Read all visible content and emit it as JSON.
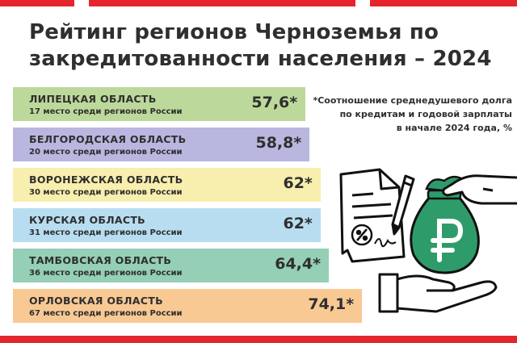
{
  "title_line1": "Рейтинг регионов Черноземья по",
  "title_line2": "закредитованности населения – 2024",
  "footnote_lines": [
    "*Соотношение среднедушевого долга",
    "по кредитам и годовой зарплаты",
    "в начале 2024 года, %"
  ],
  "colors": {
    "accent_red": "#e4262c",
    "text": "#2f2f2f",
    "money_bag": "#2e9c6a"
  },
  "icons": [
    "document-icon",
    "percent-icon",
    "pen-icon",
    "hand-icon",
    "money-bag-icon",
    "ruble-icon"
  ],
  "chart_data": {
    "type": "bar",
    "orientation": "horizontal",
    "categories": [
      "ЛИПЕЦКАЯ ОБЛАСТЬ",
      "БЕЛГОРОДСКАЯ ОБЛАСТЬ",
      "ВОРОНЕЖСКАЯ ОБЛАСТЬ",
      "КУРСКАЯ ОБЛАСТЬ",
      "ТАМБОВСКАЯ ОБЛАСТЬ",
      "ОРЛОВСКАЯ ОБЛАСТЬ"
    ],
    "values": [
      57.6,
      58.8,
      62,
      62,
      64.4,
      74.1
    ],
    "value_labels": [
      "57,6*",
      "58,8*",
      "62*",
      "62*",
      "64,4*",
      "74,1*"
    ],
    "sublabels": [
      "17 место среди регионов России",
      "20 место среди регионов России",
      "30 место среди регионов России",
      "31 место среди регионов России",
      "36 место среди регионов России",
      "67 место среди регионов России"
    ],
    "bar_colors": [
      "#bcd99b",
      "#b9b6e0",
      "#f8eeae",
      "#b8ddf1",
      "#94cfb6",
      "#f9c994"
    ]
  }
}
